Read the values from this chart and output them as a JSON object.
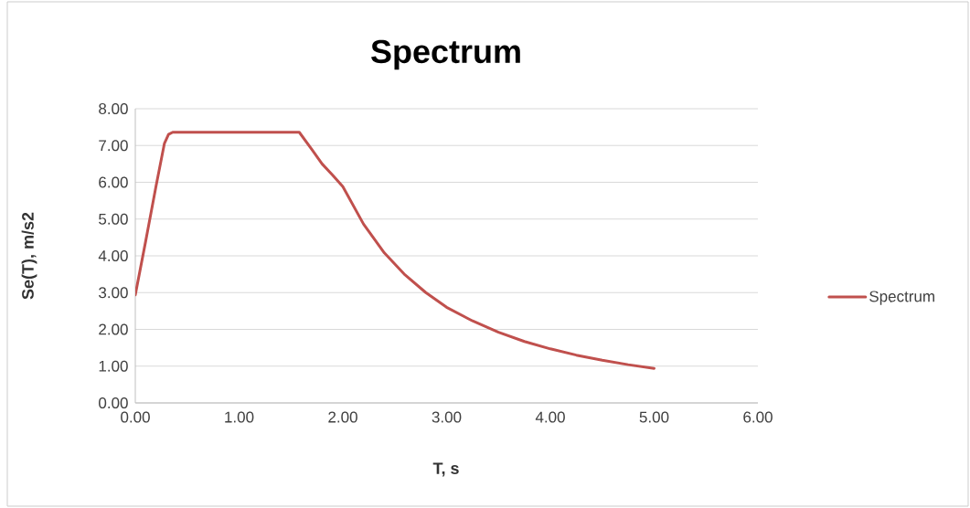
{
  "chart_data": {
    "type": "line",
    "title": "Spectrum",
    "xlabel": "T, s",
    "ylabel": "Se(T), m/s2",
    "x": [
      0,
      0.1,
      0.2,
      0.28,
      0.32,
      0.36,
      1.58,
      1.7,
      1.8,
      1.9,
      2.0,
      2.2,
      2.4,
      2.6,
      2.8,
      3.0,
      3.25,
      3.5,
      3.75,
      4.0,
      4.25,
      4.5,
      4.75,
      5.0
    ],
    "series": [
      {
        "name": "Spectrum",
        "color": "#c0504d",
        "values": [
          2.94,
          4.4,
          5.9,
          7.05,
          7.3,
          7.36,
          7.36,
          6.9,
          6.5,
          6.2,
          5.88,
          4.86,
          4.08,
          3.48,
          3.0,
          2.6,
          2.23,
          1.92,
          1.67,
          1.47,
          1.3,
          1.16,
          1.04,
          0.94
        ]
      }
    ],
    "xlim": [
      0,
      6
    ],
    "ylim": [
      0,
      8
    ],
    "xticks": [
      {
        "value": 0,
        "label": "0.00"
      },
      {
        "value": 1,
        "label": "1.00"
      },
      {
        "value": 2,
        "label": "2.00"
      },
      {
        "value": 3,
        "label": "3.00"
      },
      {
        "value": 4,
        "label": "4.00"
      },
      {
        "value": 5,
        "label": "5.00"
      },
      {
        "value": 6,
        "label": "6.00"
      }
    ],
    "yticks": [
      {
        "value": 0,
        "label": "0.00"
      },
      {
        "value": 1,
        "label": "1.00"
      },
      {
        "value": 2,
        "label": "2.00"
      },
      {
        "value": 3,
        "label": "3.00"
      },
      {
        "value": 4,
        "label": "4.00"
      },
      {
        "value": 5,
        "label": "5.00"
      },
      {
        "value": 6,
        "label": "6.00"
      },
      {
        "value": 7,
        "label": "7.00"
      },
      {
        "value": 8,
        "label": "8.00"
      }
    ],
    "grid": "y",
    "legend": "right",
    "marker": "none",
    "line_style": "solid"
  }
}
